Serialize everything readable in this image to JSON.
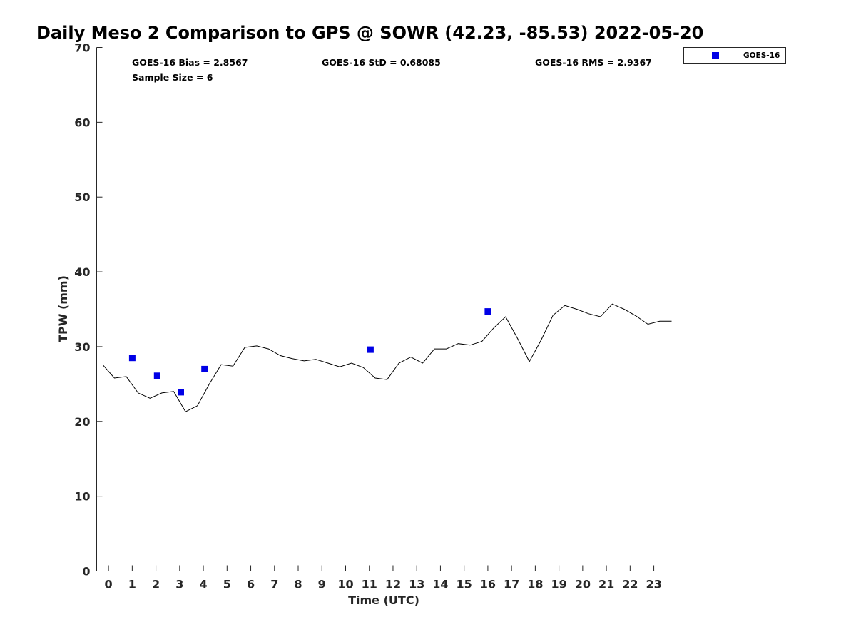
{
  "chart_data": {
    "type": "line",
    "title": "Daily Meso 2 Comparison to GPS @ SOWR (42.23, -85.53) 2022-05-20",
    "xlabel": "Time (UTC)",
    "ylabel": "TPW (mm)",
    "xlim": [
      -0.5,
      23.75
    ],
    "ylim": [
      0,
      70
    ],
    "xticks": [
      0,
      1,
      2,
      3,
      4,
      5,
      6,
      7,
      8,
      9,
      10,
      11,
      12,
      13,
      14,
      15,
      16,
      17,
      18,
      19,
      20,
      21,
      22,
      23
    ],
    "yticks": [
      0,
      10,
      20,
      30,
      40,
      50,
      60,
      70
    ],
    "grid": false,
    "legend_position": "outside top-right",
    "stats": {
      "bias": "GOES-16 Bias = 2.8567",
      "std": "GOES-16 StD = 0.68085",
      "rms": "GOES-16 RMS = 2.9367",
      "sample_size": "Sample Size = 6"
    },
    "series": [
      {
        "style": "line",
        "color": "#000000",
        "x": [
          -0.25,
          0.25,
          0.75,
          1.25,
          1.75,
          2.25,
          2.75,
          3.25,
          3.75,
          4.25,
          4.75,
          5.25,
          5.75,
          6.25,
          6.75,
          7.25,
          7.75,
          8.25,
          8.75,
          9.25,
          9.75,
          10.25,
          10.75,
          11.25,
          11.75,
          12.25,
          12.75,
          13.25,
          13.75,
          14.25,
          14.75,
          15.25,
          15.75,
          16.25,
          16.75,
          17.25,
          17.75,
          18.25,
          18.75,
          19.25,
          19.75,
          20.25,
          20.75,
          21.25,
          21.75,
          22.25,
          22.75,
          23.25,
          23.75
        ],
        "values": [
          27.6,
          25.8,
          26.0,
          23.8,
          23.1,
          23.8,
          24.0,
          21.3,
          22.1,
          25.0,
          27.6,
          27.4,
          29.9,
          30.1,
          29.7,
          28.8,
          28.4,
          28.1,
          28.3,
          27.8,
          27.3,
          27.8,
          27.2,
          25.8,
          25.6,
          27.8,
          28.6,
          27.8,
          29.7,
          29.7,
          30.4,
          30.2,
          30.7,
          32.5,
          34.0,
          31.1,
          28.0,
          30.9,
          34.2,
          35.5,
          35.0,
          34.4,
          34.0,
          35.7,
          35.0,
          34.1,
          33.0,
          33.4,
          33.4
        ]
      },
      {
        "name": "GOES-16",
        "style": "marker",
        "marker": "square",
        "color": "#0000e6",
        "x": [
          1.0,
          2.05,
          3.05,
          4.05,
          11.05,
          16.0
        ],
        "values": [
          28.5,
          26.1,
          23.9,
          27.0,
          29.6,
          34.7
        ]
      }
    ]
  }
}
